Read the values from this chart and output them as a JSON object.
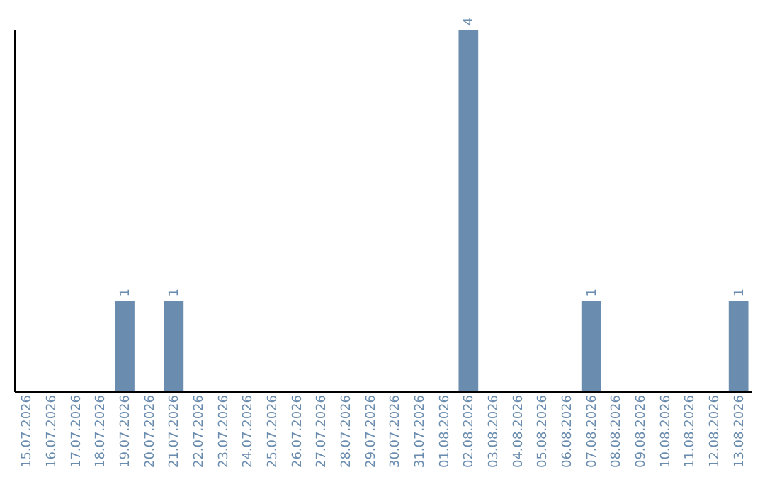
{
  "chart_data": {
    "type": "bar",
    "categories": [
      "15.07.2026",
      "16.07.2026",
      "17.07.2026",
      "18.07.2026",
      "19.07.2026",
      "20.07.2026",
      "21.07.2026",
      "22.07.2026",
      "23.07.2026",
      "24.07.2026",
      "25.07.2026",
      "26.07.2026",
      "27.07.2026",
      "28.07.2026",
      "29.07.2026",
      "30.07.2026",
      "31.07.2026",
      "01.08.2026",
      "02.08.2026",
      "03.08.2026",
      "04.08.2026",
      "05.08.2026",
      "06.08.2026",
      "07.08.2026",
      "08.08.2026",
      "09.08.2026",
      "10.08.2026",
      "11.08.2026",
      "12.08.2026",
      "13.08.2026"
    ],
    "values": [
      0,
      0,
      0,
      0,
      1,
      0,
      1,
      0,
      0,
      0,
      0,
      0,
      0,
      0,
      0,
      0,
      0,
      0,
      4,
      0,
      0,
      0,
      0,
      1,
      0,
      0,
      0,
      0,
      0,
      1
    ],
    "value_labels": [
      null,
      null,
      null,
      null,
      "1",
      null,
      "1",
      null,
      null,
      null,
      null,
      null,
      null,
      null,
      null,
      null,
      null,
      null,
      "4",
      null,
      null,
      null,
      null,
      "1",
      null,
      null,
      null,
      null,
      null,
      "1"
    ],
    "color": "#6a8cae",
    "tick_labels": "x"
  }
}
